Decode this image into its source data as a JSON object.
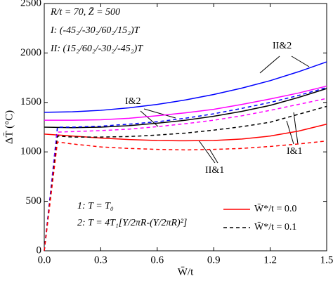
{
  "chart_data": {
    "type": "line",
    "xlabel": "W̄/t",
    "ylabel": "ΔT̄ (°C)",
    "xlim": [
      0,
      1.5
    ],
    "xticks": [
      {
        "value": 0,
        "label": "0.0"
      },
      0.3,
      0.6,
      0.9,
      1.2,
      1.5
    ],
    "ylim": [
      0,
      2500
    ],
    "yticks": [
      0,
      500,
      1000,
      1500,
      2000,
      2500
    ],
    "series": [
      {
        "color": "#0000ff",
        "dash": false,
        "x": [
          0,
          0.15,
          0.3,
          0.45,
          0.6,
          0.75,
          0.9,
          1.05,
          1.2,
          1.35,
          1.5
        ],
        "values": [
          1400,
          1405,
          1420,
          1445,
          1480,
          1525,
          1580,
          1645,
          1720,
          1810,
          1910
        ]
      },
      {
        "color": "#ff00ff",
        "dash": false,
        "x": [
          0,
          0.15,
          0.3,
          0.45,
          0.6,
          0.75,
          0.9,
          1.05,
          1.2,
          1.35,
          1.5
        ],
        "values": [
          1320,
          1320,
          1325,
          1340,
          1365,
          1395,
          1430,
          1480,
          1535,
          1595,
          1665
        ]
      },
      {
        "color": "#000000",
        "dash": false,
        "x": [
          0,
          0.15,
          0.3,
          0.45,
          0.6,
          0.75,
          0.9,
          1.05,
          1.2,
          1.35,
          1.5
        ],
        "values": [
          1250,
          1245,
          1250,
          1265,
          1290,
          1320,
          1360,
          1410,
          1470,
          1550,
          1640
        ]
      },
      {
        "color": "#ff0000",
        "dash": false,
        "x": [
          0,
          0.15,
          0.3,
          0.45,
          0.6,
          0.75,
          0.9,
          1.05,
          1.2,
          1.35,
          1.5
        ],
        "values": [
          1180,
          1160,
          1140,
          1125,
          1115,
          1112,
          1115,
          1130,
          1160,
          1210,
          1280
        ]
      },
      {
        "color": "#0000ff",
        "dash": true,
        "x": [
          0,
          0.07,
          0.15,
          0.3,
          0.45,
          0.6,
          0.75,
          0.9,
          1.05,
          1.2,
          1.35,
          1.5
        ],
        "values": [
          0,
          1250,
          1250,
          1260,
          1280,
          1305,
          1340,
          1385,
          1440,
          1500,
          1570,
          1650
        ]
      },
      {
        "color": "#ff00ff",
        "dash": true,
        "x": [
          0,
          0.07,
          0.15,
          0.3,
          0.45,
          0.6,
          0.75,
          0.9,
          1.05,
          1.2,
          1.35,
          1.5
        ],
        "values": [
          0,
          1200,
          1205,
          1215,
          1230,
          1255,
          1285,
          1320,
          1365,
          1420,
          1480,
          1540
        ]
      },
      {
        "color": "#000000",
        "dash": true,
        "x": [
          0,
          0.07,
          0.15,
          0.3,
          0.45,
          0.6,
          0.75,
          0.9,
          1.05,
          1.2,
          1.35,
          1.5
        ],
        "values": [
          0,
          1160,
          1150,
          1150,
          1155,
          1170,
          1190,
          1220,
          1255,
          1300,
          1380,
          1460
        ]
      },
      {
        "color": "#ff0000",
        "dash": true,
        "x": [
          0,
          0.07,
          0.15,
          0.3,
          0.45,
          0.6,
          0.75,
          0.9,
          1.05,
          1.2,
          1.35,
          1.5
        ],
        "values": [
          0,
          1100,
          1080,
          1050,
          1035,
          1025,
          1020,
          1025,
          1035,
          1055,
          1080,
          1110
        ]
      }
    ],
    "annotations": [
      "R/t = 70, Z̄ = 500",
      "I: (-45₂/-30₂/60₂/15₂)T",
      "II: (15₂/60₂/-30₂/-45₂)T",
      "II&2",
      "I&2",
      "I&1",
      "II&1",
      "1: T = T₀",
      "2: T = 4T₁[Y/2πR-(Y/2πR)²]"
    ],
    "legend": [
      {
        "label": "W̄*/t = 0.0",
        "color": "#ff0000",
        "dash": false
      },
      {
        "label": "W̄*/t = 0.1",
        "color": "#000000",
        "dash": true
      }
    ]
  }
}
